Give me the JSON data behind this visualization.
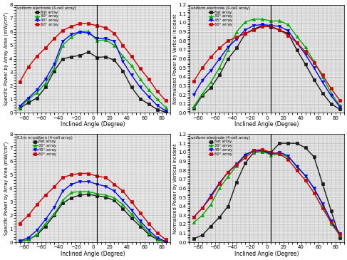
{
  "angles": [
    -85,
    -75,
    -65,
    -55,
    -45,
    -35,
    -25,
    -15,
    -5,
    5,
    15,
    25,
    35,
    45,
    55,
    65,
    75,
    85
  ],
  "top_left": {
    "title": "uniform electrode (4-cell array)",
    "ylabel": "Specific Power by Array Area (mW/cm²)",
    "xlabel": "Inclined Angle (Degree)",
    "ylim": [
      0,
      8
    ],
    "yticks": [
      0,
      1,
      2,
      3,
      4,
      5,
      6,
      7,
      8
    ],
    "series": {
      "flat array": {
        "color": "#1a1a1a",
        "marker": "s",
        "y": [
          0.35,
          0.75,
          1.1,
          1.9,
          3.1,
          4.0,
          4.15,
          4.25,
          4.5,
          4.1,
          4.15,
          3.9,
          3.1,
          1.9,
          1.05,
          0.65,
          0.25,
          0.05
        ]
      },
      "30° array": {
        "color": "#00aa00",
        "marker": "^",
        "y": [
          0.4,
          1.0,
          1.5,
          2.2,
          3.3,
          5.0,
          5.6,
          6.0,
          6.05,
          5.35,
          5.4,
          5.0,
          4.2,
          3.5,
          2.5,
          1.7,
          1.0,
          0.4
        ]
      },
      "45° array": {
        "color": "#0000ff",
        "marker": "v",
        "y": [
          0.5,
          1.1,
          1.7,
          2.5,
          3.6,
          5.3,
          5.8,
          6.0,
          5.9,
          5.5,
          5.5,
          5.3,
          3.8,
          2.8,
          1.9,
          1.2,
          0.55,
          0.15
        ]
      },
      "60° array": {
        "color": "#cc0000",
        "marker": "s",
        "y": [
          2.3,
          3.4,
          4.2,
          4.8,
          5.5,
          6.1,
          6.4,
          6.6,
          6.6,
          6.45,
          6.3,
          5.9,
          5.0,
          4.2,
          3.3,
          2.5,
          1.6,
          0.9
        ]
      }
    }
  },
  "top_right": {
    "title": "uniform electrode (4-cell array)",
    "ylabel": "Normalized Power by Vertical Incident",
    "xlabel": "Inclined Angle (Degree)",
    "ylim": [
      0.0,
      1.2
    ],
    "yticks": [
      0.0,
      0.1,
      0.2,
      0.3,
      0.4,
      0.5,
      0.6,
      0.7,
      0.8,
      0.9,
      1.0,
      1.1,
      1.2
    ],
    "series": {
      "flat array": {
        "color": "#1a1a1a",
        "marker": "s",
        "y": [
          0.05,
          0.19,
          0.28,
          0.42,
          0.6,
          0.72,
          0.88,
          0.93,
          0.97,
          0.95,
          0.92,
          0.88,
          0.7,
          0.54,
          0.37,
          0.22,
          0.1,
          0.04
        ]
      },
      "30° array": {
        "color": "#00aa00",
        "marker": "^",
        "y": [
          0.07,
          0.21,
          0.34,
          0.5,
          0.7,
          0.9,
          1.01,
          1.04,
          1.04,
          1.02,
          1.02,
          0.98,
          0.85,
          0.73,
          0.57,
          0.4,
          0.22,
          0.08
        ]
      },
      "45° array": {
        "color": "#0000ff",
        "marker": "v",
        "y": [
          0.2,
          0.36,
          0.47,
          0.6,
          0.73,
          0.82,
          0.92,
          0.97,
          0.98,
          0.97,
          0.96,
          0.91,
          0.78,
          0.65,
          0.5,
          0.34,
          0.19,
          0.07
        ]
      },
      "60° array": {
        "color": "#cc0000",
        "marker": "s",
        "y": [
          0.35,
          0.5,
          0.62,
          0.72,
          0.8,
          0.84,
          0.88,
          0.92,
          0.96,
          0.96,
          0.92,
          0.86,
          0.78,
          0.68,
          0.56,
          0.42,
          0.27,
          0.14
        ]
      }
    }
  },
  "bot_left": {
    "title": "0.1m m-pattern (4-cell array)",
    "ylabel": "Specific Power by Array Area (mW/cm²)",
    "xlabel": "Inclined Angle (Degree)",
    "ylim": [
      0,
      8
    ],
    "yticks": [
      0,
      1,
      2,
      3,
      4,
      5,
      6,
      7,
      8
    ],
    "series": {
      "flat array": {
        "color": "#1a1a1a",
        "marker": "s",
        "y": [
          0.05,
          0.2,
          0.55,
          1.2,
          2.0,
          2.9,
          3.3,
          3.5,
          3.55,
          3.45,
          3.35,
          3.1,
          2.5,
          1.8,
          1.2,
          0.6,
          0.2,
          0.02
        ]
      },
      "30° array": {
        "color": "#00aa00",
        "marker": "^",
        "y": [
          0.05,
          0.2,
          0.6,
          1.4,
          2.1,
          3.1,
          3.7,
          3.75,
          3.75,
          3.6,
          3.5,
          3.3,
          2.8,
          2.1,
          1.4,
          0.7,
          0.25,
          0.04
        ]
      },
      "45° array": {
        "color": "#0000ff",
        "marker": "v",
        "y": [
          0.1,
          0.35,
          0.9,
          1.7,
          2.6,
          3.8,
          4.3,
          4.5,
          4.5,
          4.3,
          4.15,
          3.8,
          3.1,
          2.4,
          1.6,
          0.9,
          0.35,
          0.06
        ]
      },
      "60° array": {
        "color": "#cc0000",
        "marker": "s",
        "y": [
          1.4,
          2.0,
          2.8,
          3.5,
          4.1,
          4.8,
          5.0,
          5.1,
          5.1,
          4.9,
          4.8,
          4.3,
          3.8,
          3.0,
          2.2,
          1.4,
          0.7,
          0.2
        ]
      }
    }
  },
  "bot_right": {
    "title": "uniform electrode (4-cell array)",
    "ylabel": "Normalized Power by Vertical Incident",
    "xlabel": "Inclined Angle (Degree)",
    "ylim": [
      0.0,
      1.2
    ],
    "yticks": [
      0.0,
      0.1,
      0.2,
      0.3,
      0.4,
      0.5,
      0.6,
      0.7,
      0.8,
      0.9,
      1.0,
      1.1,
      1.2
    ],
    "series": {
      "flat array": {
        "color": "#1a1a1a",
        "marker": "s",
        "y": [
          0.04,
          0.08,
          0.18,
          0.28,
          0.4,
          0.67,
          0.88,
          1.0,
          1.01,
          1.0,
          1.1,
          1.1,
          1.1,
          1.05,
          0.95,
          0.65,
          0.35,
          0.05
        ]
      },
      "30° array": {
        "color": "#00aa00",
        "marker": "^",
        "y": [
          0.22,
          0.3,
          0.42,
          0.6,
          0.73,
          0.85,
          0.98,
          1.01,
          1.01,
          0.97,
          0.98,
          0.95,
          0.85,
          0.74,
          0.6,
          0.42,
          0.21,
          0.08
        ]
      },
      "45° array": {
        "color": "#0000ff",
        "marker": "v",
        "y": [
          0.28,
          0.38,
          0.52,
          0.66,
          0.78,
          0.87,
          0.97,
          1.02,
          1.02,
          0.98,
          1.0,
          0.96,
          0.84,
          0.74,
          0.6,
          0.43,
          0.24,
          0.1
        ]
      },
      "60° array": {
        "color": "#cc0000",
        "marker": "s",
        "y": [
          0.28,
          0.38,
          0.5,
          0.65,
          0.78,
          0.86,
          0.94,
          1.02,
          1.03,
          1.0,
          0.98,
          0.92,
          0.8,
          0.69,
          0.55,
          0.38,
          0.22,
          0.09
        ]
      }
    }
  },
  "grid_color": "#b0b0b0",
  "bg_color": "#e8e8e8",
  "legend_keys": [
    "flat array",
    "30° array",
    "45° array",
    "60° array"
  ],
  "marker_size": 3,
  "line_width": 1.0
}
